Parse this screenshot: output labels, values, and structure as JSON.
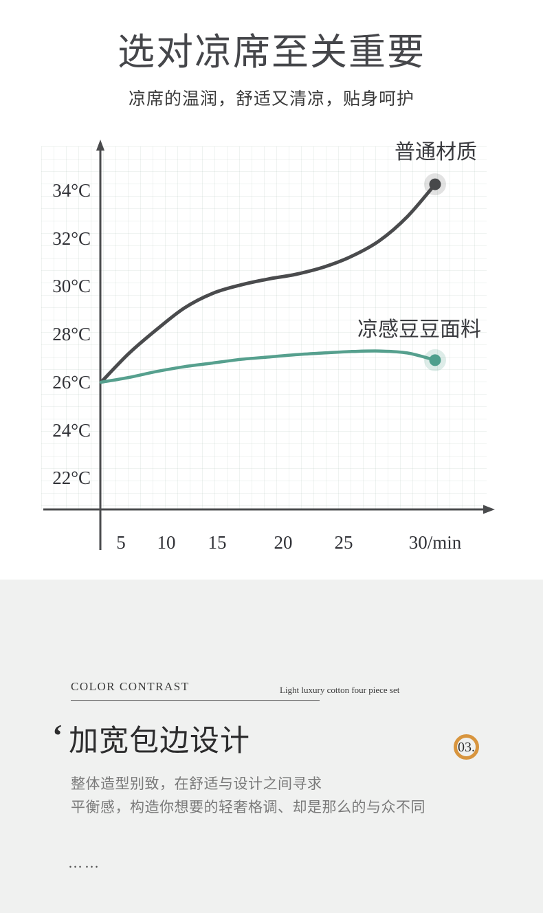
{
  "hero": {
    "title": "选对凉席至关重要",
    "subtitle": "凉席的温润，舒适又清凉，贴身呵护"
  },
  "chart_data": {
    "type": "line",
    "x": [
      0,
      2.5,
      5,
      7.5,
      10,
      12.5,
      15,
      17.5,
      20,
      22.5,
      25,
      27.5,
      30
    ],
    "x_unit": "min",
    "y_unit": "°C",
    "series": [
      {
        "name": "普通材质",
        "values": [
          26,
          27.2,
          28.2,
          29.1,
          29.7,
          30.05,
          30.3,
          30.5,
          30.8,
          31.25,
          31.9,
          32.9,
          34.25
        ],
        "color": "#4a4b4d",
        "dot_color": "#47484a",
        "halo_color": "rgba(74,75,77,0.16)",
        "stroke_width": 5
      },
      {
        "name": "凉感豆豆面料",
        "values": [
          26,
          26.2,
          26.45,
          26.65,
          26.8,
          26.95,
          27.05,
          27.15,
          27.22,
          27.28,
          27.3,
          27.22,
          26.92
        ],
        "color": "#56a08e",
        "dot_color": "#4f9f8d",
        "halo_color": "rgba(86,160,142,0.2)",
        "stroke_width": 4.5
      }
    ],
    "x_ticks": [
      "5",
      "10",
      "15",
      "20",
      "25",
      "30/min"
    ],
    "y_ticks": [
      "34°C",
      "32°C",
      "30°C",
      "28°C",
      "26°C",
      "24°C",
      "22°C"
    ],
    "y_tick_values": [
      34,
      32,
      30,
      28,
      26,
      24,
      22
    ],
    "xlim": [
      0,
      32
    ],
    "ylim": [
      21,
      35.5
    ],
    "grid": true,
    "legend_position": "inline-labels-near-line-ends"
  },
  "feature": {
    "eyebrow": "COLOR CONTRAST",
    "note": "Light luxury cotton four piece set",
    "quote_mark": "‘",
    "heading": "加宽包边设计",
    "badge": "03.",
    "body_lines": [
      "整体造型别致，在舒适与设计之间寻求",
      "平衡感，构造你想要的轻奢格调、却是那么的与众不同"
    ],
    "ellipsis": "……"
  },
  "colors": {
    "axis": "#4a4b4d",
    "ordinary_line": "#4a4b4d",
    "cool_line": "#56a08e",
    "badge_ring": "#d8953e",
    "heading_text": "#2c2c2d",
    "body_text": "#7a7a7a",
    "section_bg": "#f0f1f0",
    "hero_bg": "#ffffff"
  }
}
